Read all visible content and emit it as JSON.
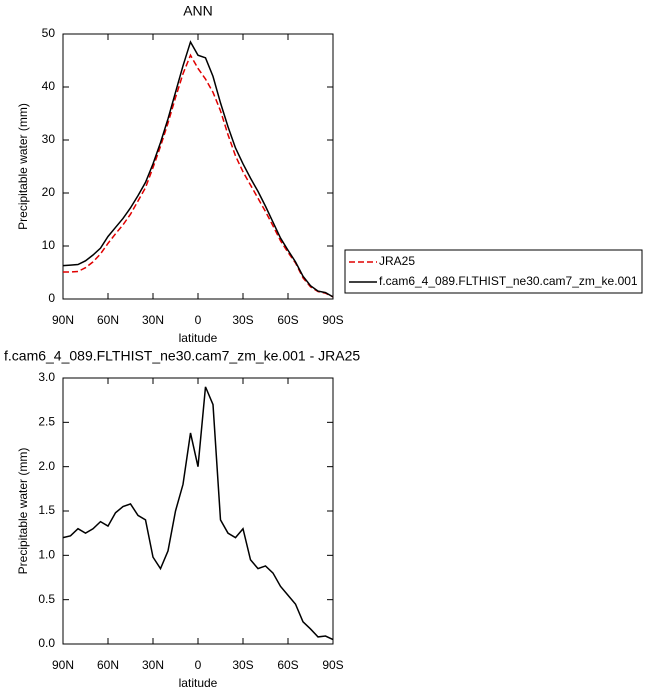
{
  "chart_data": [
    {
      "type": "line",
      "title": "ANN",
      "x_label": "latitude",
      "y_label": "Precipitable water (mm)",
      "x": [
        90,
        85,
        80,
        75,
        70,
        65,
        60,
        55,
        50,
        45,
        40,
        35,
        30,
        25,
        20,
        15,
        10,
        5,
        0,
        -5,
        -10,
        -15,
        -20,
        -25,
        -30,
        -35,
        -40,
        -45,
        -50,
        -55,
        -60,
        -65,
        -70,
        -75,
        -80,
        -85,
        -90
      ],
      "xlim": [
        90,
        -90
      ],
      "xticks": [
        {
          "value": 90,
          "label": "90N"
        },
        {
          "value": 60,
          "label": "60N"
        },
        {
          "value": 30,
          "label": "30N"
        },
        0,
        {
          "value": -30,
          "label": "30S"
        },
        {
          "value": -60,
          "label": "60S"
        },
        {
          "value": -90,
          "label": "90S"
        }
      ],
      "ylim": [
        0,
        50
      ],
      "yticks": [
        0,
        10,
        20,
        30,
        40,
        50
      ],
      "series": [
        {
          "name": "JRA25",
          "color": "#e00000",
          "dashed": true,
          "values": [
            5.1,
            5.1,
            5.2,
            5.9,
            7.0,
            8.5,
            10.5,
            12.3,
            14.0,
            16.0,
            18.5,
            21.0,
            24.8,
            28.8,
            33.2,
            38.0,
            42.5,
            46.0,
            43.5,
            41.5,
            39.0,
            35.5,
            31.0,
            27.0,
            24.0,
            21.5,
            19.0,
            16.5,
            13.8,
            11.0,
            8.8,
            6.8,
            4.0,
            2.3,
            1.4,
            1.1,
            0.4
          ]
        },
        {
          "name": "f.cam6_4_089.FLTHIST_ne30.cam7_zm_ke.001",
          "color": "#000000",
          "dashed": false,
          "values": [
            6.3,
            6.4,
            6.5,
            7.2,
            8.3,
            9.6,
            11.8,
            13.5,
            15.2,
            17.2,
            19.5,
            22.0,
            25.5,
            29.5,
            34.0,
            39.0,
            44.0,
            48.5,
            46.0,
            45.5,
            42.0,
            37.0,
            32.5,
            28.5,
            25.5,
            22.8,
            20.3,
            17.5,
            14.5,
            11.5,
            9.2,
            7.0,
            4.3,
            2.5,
            1.5,
            1.2,
            0.4
          ]
        }
      ]
    },
    {
      "type": "line",
      "title": "f.cam6_4_089.FLTHIST_ne30.cam7_zm_ke.001 - JRA25",
      "x_label": "latitude",
      "y_label": "Precipitable water (mm)",
      "x": [
        90,
        85,
        80,
        75,
        70,
        65,
        60,
        55,
        50,
        45,
        40,
        35,
        30,
        25,
        20,
        15,
        10,
        5,
        0,
        -5,
        -10,
        -15,
        -20,
        -25,
        -30,
        -35,
        -40,
        -45,
        -50,
        -55,
        -60,
        -65,
        -70,
        -75,
        -80,
        -85,
        -90
      ],
      "xlim": [
        90,
        -90
      ],
      "xticks": [
        {
          "value": 90,
          "label": "90N"
        },
        {
          "value": 60,
          "label": "60N"
        },
        {
          "value": 30,
          "label": "30N"
        },
        0,
        {
          "value": -30,
          "label": "30S"
        },
        {
          "value": -60,
          "label": "60S"
        },
        {
          "value": -90,
          "label": "90S"
        }
      ],
      "ylim": [
        0,
        3
      ],
      "yticks": [
        {
          "value": 0,
          "label": "0.0"
        },
        0.5,
        {
          "value": 1,
          "label": "1.0"
        },
        1.5,
        {
          "value": 2,
          "label": "2.0"
        },
        2.5,
        {
          "value": 3,
          "label": "3.0"
        }
      ],
      "series": [
        {
          "color": "#000000",
          "dashed": false,
          "values": [
            1.2,
            1.22,
            1.3,
            1.25,
            1.3,
            1.38,
            1.33,
            1.48,
            1.55,
            1.58,
            1.45,
            1.4,
            0.98,
            0.85,
            1.05,
            1.5,
            1.8,
            2.38,
            2.0,
            2.9,
            2.7,
            1.4,
            1.25,
            1.2,
            1.3,
            0.95,
            0.85,
            0.88,
            0.8,
            0.65,
            0.55,
            0.45,
            0.25,
            0.17,
            0.08,
            0.09,
            0.05
          ]
        }
      ]
    }
  ]
}
